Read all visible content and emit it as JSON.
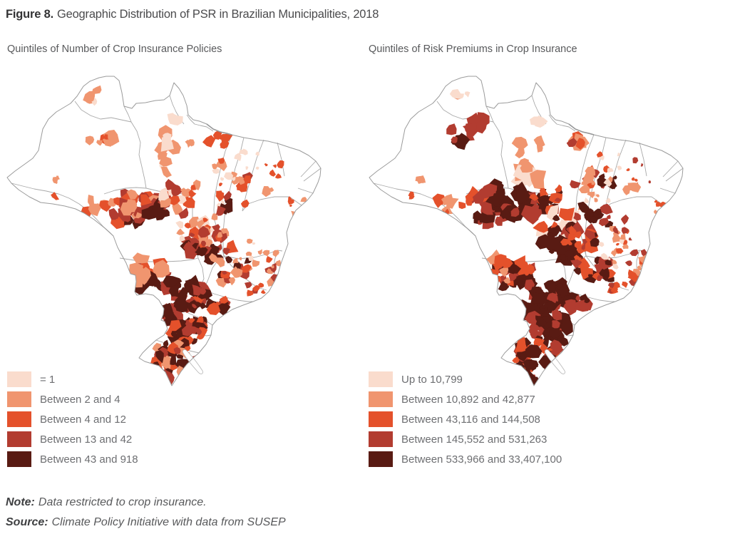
{
  "title": {
    "prefix": "Figure 8.",
    "text": "Geographic Distribution of PSR in Brazilian Municipalities, 2018"
  },
  "quintile_colors": [
    "#fadccd",
    "#f0956f",
    "#e4512b",
    "#b23c30",
    "#591b13"
  ],
  "map_line_color": "#9b9b9b",
  "panels": [
    {
      "subtitle": "Quintiles of Number of Crop Insurance Policies",
      "legend": [
        {
          "label": "= 1",
          "color": "#fadccd"
        },
        {
          "label": "Between 2 and 4",
          "color": "#f0956f"
        },
        {
          "label": "Between 4 and 12",
          "color": "#e4512b"
        },
        {
          "label": "Between 13 and 42",
          "color": "#b23c30"
        },
        {
          "label": "Between 43 and 918",
          "color": "#591b13"
        }
      ],
      "map_texture": [
        [
          128,
          32,
          16,
          9,
          5,
          7,
          [
            0,
            0,
            1
          ],
          101
        ],
        [
          133,
          88,
          22,
          9,
          9,
          8,
          [
            1,
            1,
            2
          ],
          102
        ],
        [
          74,
          148,
          8,
          4,
          3,
          5,
          [
            1
          ],
          103
        ],
        [
          64,
          169,
          6,
          4,
          2,
          4,
          [
            2
          ],
          104
        ],
        [
          240,
          64,
          8,
          4,
          3,
          6,
          [
            0
          ],
          105
        ],
        [
          228,
          118,
          14,
          36,
          13,
          11,
          [
            1,
            1,
            0
          ],
          106
        ],
        [
          296,
          92,
          14,
          8,
          6,
          8,
          [
            2,
            2,
            3
          ],
          107
        ],
        [
          262,
          98,
          10,
          6,
          3,
          5,
          [
            1
          ],
          108
        ],
        [
          305,
          138,
          20,
          18,
          8,
          6,
          [
            1,
            2,
            0
          ],
          109
        ],
        [
          338,
          150,
          10,
          10,
          6,
          6,
          [
            3,
            2
          ],
          110
        ],
        [
          338,
          122,
          16,
          16,
          6,
          4,
          [
            0,
            1
          ],
          111
        ],
        [
          378,
          138,
          18,
          18,
          6,
          4,
          [
            2,
            1
          ],
          112
        ],
        [
          412,
          185,
          14,
          20,
          7,
          4,
          [
            2,
            1
          ],
          113
        ],
        [
          366,
          163,
          8,
          6,
          3,
          6,
          [
            1
          ],
          114
        ],
        [
          122,
          186,
          24,
          9,
          8,
          7,
          [
            1,
            2
          ],
          115
        ],
        [
          160,
          175,
          20,
          9,
          9,
          7,
          [
            2,
            1
          ],
          116
        ],
        [
          170,
          200,
          22,
          12,
          12,
          8,
          [
            3,
            4,
            2
          ],
          117
        ],
        [
          196,
          186,
          30,
          18,
          26,
          8,
          [
            2,
            3,
            3,
            1
          ],
          118
        ],
        [
          215,
          190,
          14,
          8,
          9,
          8,
          [
            4,
            4,
            3
          ],
          119
        ],
        [
          244,
          175,
          26,
          20,
          20,
          7,
          [
            2,
            1,
            3,
            0
          ],
          120
        ],
        [
          320,
          162,
          22,
          26,
          12,
          5,
          [
            1,
            2,
            0
          ],
          121
        ],
        [
          270,
          215,
          26,
          22,
          24,
          7,
          [
            2,
            3,
            1,
            0
          ],
          122
        ],
        [
          295,
          235,
          22,
          18,
          20,
          7,
          [
            2,
            3,
            4,
            1
          ],
          123
        ],
        [
          308,
          185,
          7,
          16,
          6,
          7,
          [
            4,
            3
          ],
          124
        ],
        [
          258,
          240,
          12,
          9,
          8,
          8,
          [
            4,
            3
          ],
          125
        ],
        [
          285,
          255,
          16,
          8,
          8,
          8,
          [
            4,
            4
          ],
          126
        ],
        [
          316,
          274,
          24,
          16,
          18,
          6,
          [
            2,
            3,
            1,
            4
          ],
          127
        ],
        [
          344,
          252,
          22,
          18,
          10,
          4,
          [
            0,
            1
          ],
          128
        ],
        [
          378,
          272,
          13,
          26,
          13,
          5,
          [
            2,
            1,
            3
          ],
          129
        ],
        [
          350,
          300,
          12,
          7,
          7,
          5,
          [
            2,
            3
          ],
          130
        ],
        [
          205,
          282,
          26,
          18,
          22,
          8,
          [
            3,
            2,
            4,
            1
          ],
          131
        ],
        [
          186,
          278,
          10,
          22,
          9,
          8,
          [
            1,
            1
          ],
          132
        ],
        [
          243,
          302,
          20,
          12,
          13,
          8,
          [
            4,
            3,
            4
          ],
          133
        ],
        [
          282,
          318,
          26,
          11,
          22,
          7,
          [
            3,
            4,
            2,
            4
          ],
          134
        ],
        [
          232,
          330,
          20,
          10,
          13,
          9,
          [
            4,
            4,
            3
          ],
          135
        ],
        [
          268,
          300,
          14,
          9,
          9,
          7,
          [
            3,
            4
          ],
          136
        ],
        [
          255,
          349,
          28,
          10,
          24,
          8,
          [
            4,
            3,
            4,
            2
          ],
          137
        ],
        [
          254,
          368,
          24,
          8,
          18,
          7,
          [
            4,
            3,
            2,
            4
          ],
          138
        ],
        [
          237,
          396,
          30,
          20,
          32,
          8,
          [
            4,
            3,
            2,
            4,
            1
          ],
          139
        ],
        [
          214,
          418,
          16,
          9,
          8,
          7,
          [
            3,
            4
          ],
          140
        ],
        [
          222,
          428,
          10,
          7,
          6,
          8,
          [
            3,
            3,
            4
          ],
          141
        ]
      ]
    },
    {
      "subtitle": "Quintiles of Risk Premiums in Crop Insurance",
      "legend": [
        {
          "label": "Up to 10,799",
          "color": "#fadccd"
        },
        {
          "label": "Between 10,892 and 42,877",
          "color": "#f0956f"
        },
        {
          "label": "Between 43,116 and 144,508",
          "color": "#e4512b"
        },
        {
          "label": "Between 145,552 and 531,263",
          "color": "#b23c30"
        },
        {
          "label": "Between 533,966 and 33,407,100",
          "color": "#591b13"
        }
      ],
      "map_texture": [
        [
          128,
          32,
          14,
          8,
          4,
          7,
          [
            0,
            1
          ],
          201
        ],
        [
          138,
          85,
          22,
          11,
          9,
          9,
          [
            3,
            3,
            4
          ],
          202
        ],
        [
          152,
          68,
          8,
          8,
          4,
          7,
          [
            3
          ],
          203
        ],
        [
          74,
          148,
          8,
          4,
          3,
          5,
          [
            1
          ],
          204
        ],
        [
          64,
          169,
          6,
          4,
          2,
          4,
          [
            2
          ],
          205
        ],
        [
          240,
          64,
          8,
          4,
          3,
          6,
          [
            0
          ],
          206
        ],
        [
          228,
          118,
          14,
          36,
          13,
          11,
          [
            1,
            1,
            0
          ],
          207
        ],
        [
          296,
          92,
          14,
          8,
          6,
          8,
          [
            3,
            1,
            2
          ],
          208
        ],
        [
          305,
          138,
          20,
          18,
          8,
          6,
          [
            1,
            2,
            3
          ],
          209
        ],
        [
          338,
          150,
          10,
          10,
          6,
          6,
          [
            4,
            3
          ],
          210
        ],
        [
          338,
          122,
          16,
          16,
          6,
          4,
          [
            0,
            2
          ],
          211
        ],
        [
          378,
          138,
          18,
          18,
          7,
          4,
          [
            2,
            3
          ],
          212
        ],
        [
          412,
          185,
          14,
          20,
          8,
          4,
          [
            2,
            1
          ],
          213
        ],
        [
          366,
          163,
          8,
          6,
          3,
          6,
          [
            1
          ],
          214
        ],
        [
          122,
          186,
          24,
          9,
          9,
          7,
          [
            1,
            2
          ],
          215
        ],
        [
          160,
          175,
          20,
          9,
          9,
          8,
          [
            3,
            2
          ],
          216
        ],
        [
          170,
          200,
          22,
          12,
          12,
          8,
          [
            3,
            4
          ],
          217
        ],
        [
          205,
          180,
          40,
          22,
          34,
          10,
          [
            4,
            4,
            4,
            3
          ],
          218
        ],
        [
          246,
          178,
          24,
          18,
          18,
          8,
          [
            3,
            4,
            2
          ],
          219
        ],
        [
          320,
          162,
          22,
          26,
          12,
          5,
          [
            1,
            2,
            0
          ],
          220
        ],
        [
          270,
          215,
          26,
          22,
          24,
          8,
          [
            3,
            4,
            2,
            0
          ],
          221
        ],
        [
          298,
          232,
          22,
          18,
          22,
          8,
          [
            4,
            3,
            2
          ],
          222
        ],
        [
          308,
          185,
          7,
          16,
          6,
          7,
          [
            4,
            4
          ],
          223
        ],
        [
          325,
          205,
          14,
          20,
          10,
          7,
          [
            4,
            3
          ],
          224
        ],
        [
          360,
          220,
          16,
          22,
          10,
          5,
          [
            2,
            3,
            1
          ],
          225
        ],
        [
          258,
          240,
          12,
          9,
          8,
          8,
          [
            4,
            4
          ],
          226
        ],
        [
          285,
          255,
          16,
          8,
          9,
          8,
          [
            4,
            4
          ],
          227
        ],
        [
          316,
          274,
          24,
          16,
          20,
          7,
          [
            3,
            4,
            2
          ],
          228
        ],
        [
          344,
          252,
          22,
          18,
          12,
          4,
          [
            0,
            1,
            2
          ],
          229
        ],
        [
          378,
          272,
          13,
          26,
          14,
          5,
          [
            2,
            1,
            3
          ],
          230
        ],
        [
          350,
          300,
          12,
          7,
          7,
          5,
          [
            2,
            3
          ],
          231
        ],
        [
          205,
          282,
          26,
          18,
          24,
          9,
          [
            4,
            3,
            2
          ],
          232
        ],
        [
          186,
          278,
          10,
          22,
          9,
          8,
          [
            1,
            2
          ],
          233
        ],
        [
          243,
          302,
          20,
          12,
          14,
          9,
          [
            4,
            4,
            3
          ],
          234
        ],
        [
          282,
          318,
          26,
          11,
          24,
          8,
          [
            4,
            3,
            4
          ],
          235
        ],
        [
          232,
          330,
          20,
          10,
          14,
          9,
          [
            4,
            4
          ],
          236
        ],
        [
          268,
          300,
          14,
          9,
          10,
          7,
          [
            4,
            4
          ],
          237
        ],
        [
          255,
          349,
          28,
          10,
          26,
          8,
          [
            4,
            4,
            3
          ],
          238
        ],
        [
          254,
          368,
          24,
          8,
          19,
          7,
          [
            4,
            3,
            4
          ],
          239
        ],
        [
          237,
          396,
          30,
          20,
          34,
          9,
          [
            4,
            4,
            3,
            2
          ],
          240
        ],
        [
          214,
          418,
          16,
          9,
          9,
          7,
          [
            4,
            3
          ],
          241
        ],
        [
          222,
          428,
          10,
          7,
          6,
          8,
          [
            4,
            3
          ],
          242
        ]
      ]
    }
  ],
  "note": {
    "prefix": "Note:",
    "text": "Data restricted to crop insurance."
  },
  "source": {
    "prefix": "Source:",
    "text": "Climate Policy Initiative with data from SUSEP"
  },
  "chart_data": {
    "type": "choropleth",
    "title": "Figure 8. Geographic Distribution of PSR in Brazilian Municipalities, 2018",
    "region": "Brazil, by municipality",
    "maps": [
      {
        "subtitle": "Quintiles of Number of Crop Insurance Policies",
        "classes": [
          "= 1",
          "Between 2 and 4",
          "Between 4 and 12",
          "Between 13 and 42",
          "Between 43 and 918"
        ],
        "class_colors": [
          "#fadccd",
          "#f0956f",
          "#e4512b",
          "#b23c30",
          "#591b13"
        ]
      },
      {
        "subtitle": "Quintiles of Risk Premiums in Crop Insurance",
        "classes": [
          "Up to 10,799",
          "Between 10,892 and 42,877",
          "Between 43,116 and 144,508",
          "Between 145,552 and 531,263",
          "Between 533,966 and 33,407,100"
        ],
        "class_colors": [
          "#fadccd",
          "#f0956f",
          "#e4512b",
          "#b23c30",
          "#591b13"
        ]
      }
    ],
    "note": "Note: Data restricted to crop insurance.",
    "source": "Source: Climate Policy Initiative with data from SUSEP"
  }
}
